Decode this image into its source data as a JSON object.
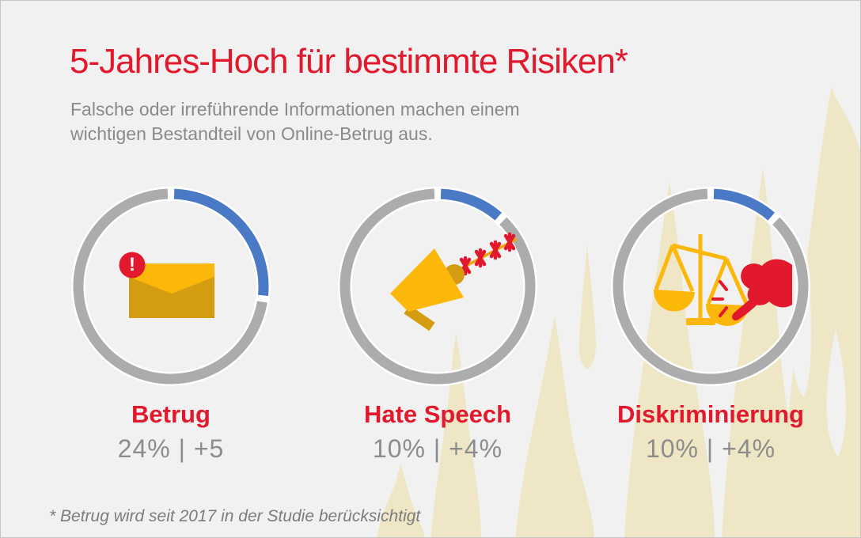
{
  "chart_data": {
    "type": "pie",
    "variant": "donut_gauge_row",
    "title": "5-Jahres-Hoch für bestimmte Risiken*",
    "subtitle_lines": [
      "Falsche oder irreführende Informationen machen einem",
      "wichtigen Bestandteil von Online-Betrug aus."
    ],
    "footnote": "* Betrug wird seit 2017 in der Studie berücksichtigt",
    "items": [
      {
        "label": "Betrug",
        "value_pct": 24,
        "change_label": "+5",
        "value_display": "24% | +5",
        "icon": "alert-envelope-icon"
      },
      {
        "label": "Hate Speech",
        "value_pct": 10,
        "change_label": "+4%",
        "value_display": "10% | +4%",
        "icon": "megaphone-barbed-wire-icon"
      },
      {
        "label": "Diskriminierung",
        "value_pct": 10,
        "change_label": "+4%",
        "value_display": "10% | +4%",
        "icon": "scales-thumbs-down-icon"
      }
    ],
    "gauge": {
      "start_deg": 2,
      "deg_per_pct": 3.9,
      "direction": "clockwise"
    },
    "legend_position": "none",
    "colors": {
      "accent_red": "#E2192C",
      "arc_blue": "#4A79C5",
      "ring_gray": "#ACACAC",
      "amber": "#FCB70B",
      "amber_dark": "#D49C10",
      "text_gray": "#8C8C8C",
      "background": "#F1F1F1",
      "flame_beige": "#EFE6C6"
    }
  }
}
